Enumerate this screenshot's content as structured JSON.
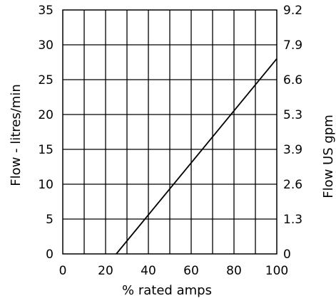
{
  "chart_data": {
    "type": "line",
    "title": "",
    "xlabel": "% rated amps",
    "ylabel": "Flow - litres/min",
    "y2label": "Flow US gpm",
    "xlim": [
      0,
      100
    ],
    "ylim": [
      0,
      35
    ],
    "grid": true,
    "x_ticks": [
      "0",
      "20",
      "40",
      "60",
      "80",
      "100"
    ],
    "y_ticks": [
      "0",
      "5",
      "10",
      "15",
      "20",
      "25",
      "30",
      "35"
    ],
    "y2_ticks": [
      "0",
      "1.3",
      "2.6",
      "3.9",
      "5.3",
      "6.6",
      "7.9",
      "9.2"
    ],
    "series": [
      {
        "x": [
          25,
          100
        ],
        "y": [
          0,
          28
        ]
      }
    ],
    "colors": {
      "line": "#000000",
      "grid": "#000000",
      "background": "#ffffff"
    }
  }
}
